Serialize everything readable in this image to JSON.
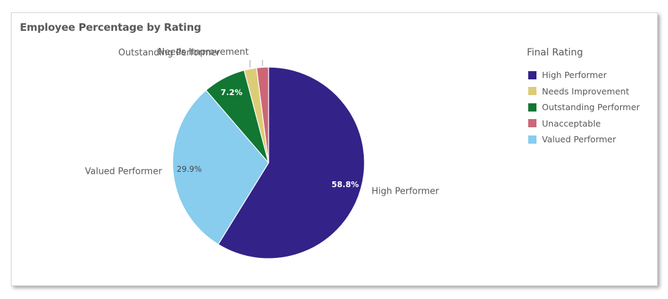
{
  "chart_data": {
    "type": "pie",
    "title": "Employee Percentage by Rating",
    "legend_title": "Final Rating",
    "legend_position": "right",
    "legend": [
      {
        "name": "High Performer",
        "color": "#332288"
      },
      {
        "name": "Needs Improvement",
        "color": "#DDCC77"
      },
      {
        "name": "Outstanding Performer",
        "color": "#117733"
      },
      {
        "name": "Unacceptable",
        "color": "#CC6677"
      },
      {
        "name": "Valued Performer",
        "color": "#88CCEE"
      }
    ],
    "slices": [
      {
        "name": "High Performer",
        "value": 58.8,
        "value_label": "58.8%",
        "color": "#332288"
      },
      {
        "name": "Valued Performer",
        "value": 29.9,
        "value_label": "29.9%",
        "color": "#88CCEE"
      },
      {
        "name": "Outstanding Performer",
        "value": 7.2,
        "value_label": "7.2%",
        "color": "#117733"
      },
      {
        "name": "Needs Improvement",
        "value": 2.1,
        "value_label": "",
        "color": "#DDCC77"
      },
      {
        "name": "Unacceptable",
        "value": 2.0,
        "value_label": "",
        "color": "#CC6677"
      }
    ]
  }
}
